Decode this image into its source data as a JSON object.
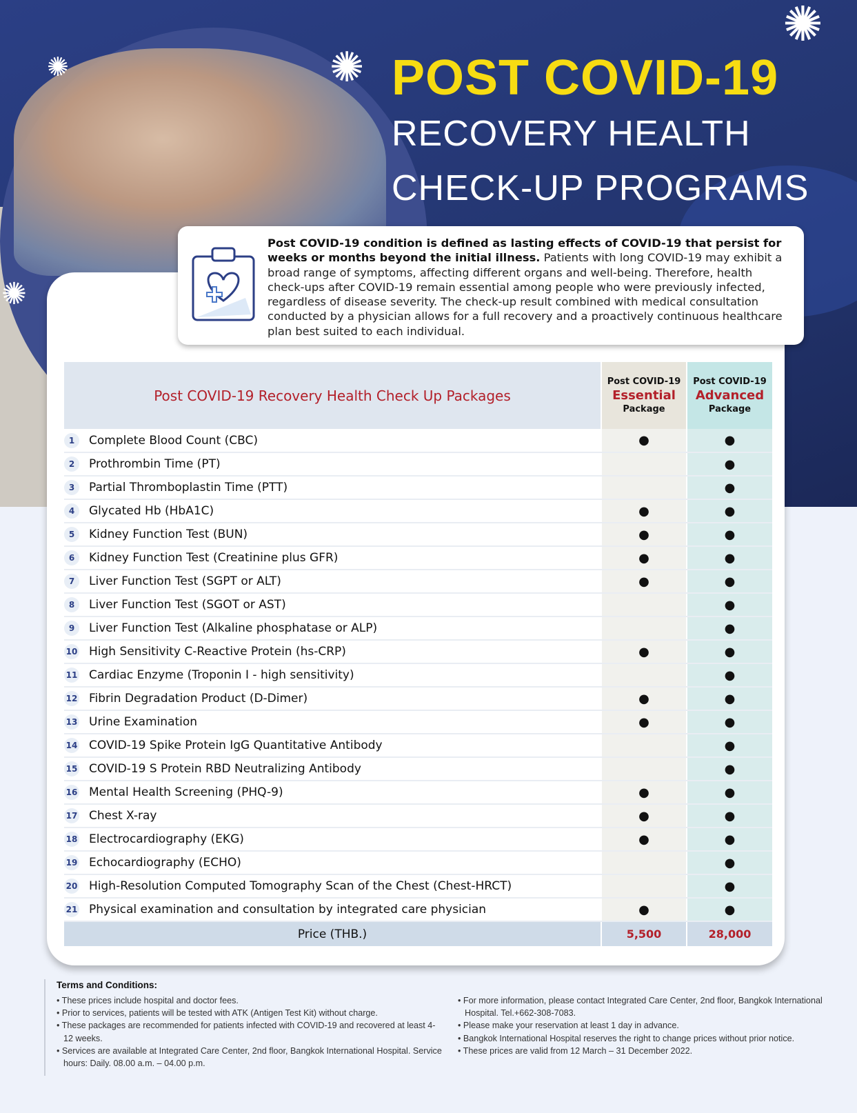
{
  "header": {
    "title_line1": "POST COVID-19",
    "title_line2": "RECOVERY HEALTH",
    "title_line3": "CHECK-UP PROGRAMS",
    "accent": "#f7dc12",
    "background": "#273a7b"
  },
  "intro": {
    "icon": "clipboard-heart-icon",
    "bold": "Post COVID-19 condition is defined as lasting effects of COVID-19 that persist for weeks or months beyond the initial illness.",
    "text": " Patients with long COVID-19 may exhibit a broad range of symptoms, affecting different organs and well-being. Therefore, health check-ups after COVID-19 remain essential among people who were previously infected, regardless of disease severity. The check-up result combined with medical consultation conducted by a physician allows for a full recovery and a proactively continuous healthcare plan best suited to each individual."
  },
  "table": {
    "title": "Post COVID-19 Recovery Health Check Up Packages",
    "essential": {
      "top": "Post COVID-19",
      "name": "Essential",
      "bottom": "Package"
    },
    "advanced": {
      "top": "Post COVID-19",
      "name": "Advanced",
      "bottom": "Package"
    },
    "mark": "●",
    "rows": [
      {
        "no": "1",
        "name": "Complete Blood Count (CBC)",
        "essential": true,
        "advanced": true
      },
      {
        "no": "2",
        "name": "Prothrombin Time (PT)",
        "essential": false,
        "advanced": true
      },
      {
        "no": "3",
        "name": "Partial Thromboplastin Time (PTT)",
        "essential": false,
        "advanced": true
      },
      {
        "no": "4",
        "name": "Glycated Hb (HbA1C)",
        "essential": true,
        "advanced": true
      },
      {
        "no": "5",
        "name": "Kidney Function Test (BUN)",
        "essential": true,
        "advanced": true
      },
      {
        "no": "6",
        "name": "Kidney Function Test (Creatinine plus GFR)",
        "essential": true,
        "advanced": true
      },
      {
        "no": "7",
        "name": "Liver Function Test (SGPT or ALT)",
        "essential": true,
        "advanced": true
      },
      {
        "no": "8",
        "name": "Liver Function Test (SGOT or AST)",
        "essential": false,
        "advanced": true
      },
      {
        "no": "9",
        "name": "Liver Function Test (Alkaline phosphatase or ALP)",
        "essential": false,
        "advanced": true
      },
      {
        "no": "10",
        "name": "High Sensitivity C-Reactive Protein (hs-CRP)",
        "essential": true,
        "advanced": true
      },
      {
        "no": "11",
        "name": "Cardiac Enzyme (Troponin I - high sensitivity)",
        "essential": false,
        "advanced": true
      },
      {
        "no": "12",
        "name": "Fibrin Degradation Product (D-Dimer)",
        "essential": true,
        "advanced": true
      },
      {
        "no": "13",
        "name": "Urine Examination",
        "essential": true,
        "advanced": true
      },
      {
        "no": "14",
        "name": "COVID-19 Spike Protein IgG Quantitative Antibody",
        "essential": false,
        "advanced": true
      },
      {
        "no": "15",
        "name": "COVID-19 S Protein RBD Neutralizing Antibody",
        "essential": false,
        "advanced": true
      },
      {
        "no": "16",
        "name": "Mental Health Screening (PHQ-9)",
        "essential": true,
        "advanced": true
      },
      {
        "no": "17",
        "name": "Chest X-ray",
        "essential": true,
        "advanced": true
      },
      {
        "no": "18",
        "name": "Electrocardiography (EKG)",
        "essential": true,
        "advanced": true
      },
      {
        "no": "19",
        "name": "Echocardiography (ECHO)",
        "essential": false,
        "advanced": true
      },
      {
        "no": "20",
        "name": "High-Resolution Computed Tomography Scan of the Chest (Chest-HRCT)",
        "essential": false,
        "advanced": true
      },
      {
        "no": "21",
        "name": "Physical examination and consultation by integrated care physician",
        "essential": true,
        "advanced": true
      }
    ],
    "price_label": "Price (THB.)",
    "price_essential": "5,500",
    "price_advanced": "28,000"
  },
  "terms": {
    "title": "Terms and Conditions:",
    "left": [
      "• These prices include hospital and doctor fees.",
      "• Prior to services, patients will be tested with ATK (Antigen Test Kit) without charge.",
      "• These packages are recommended for patients infected with COVID-19 and recovered at least 4-12 weeks.",
      "• Services are available at Integrated Care Center, 2nd floor, Bangkok International Hospital. Service hours: Daily. 08.00 a.m. – 04.00 p.m."
    ],
    "right": [
      "• For more information, please contact Integrated Care Center, 2nd floor, Bangkok International Hospital. Tel.+662-308-7083.",
      "• Please make your reservation at least 1 day in advance.",
      "• Bangkok International Hospital reserves the right to change prices without prior notice.",
      "• These prices are valid from 12 March – 31 December 2022."
    ]
  }
}
